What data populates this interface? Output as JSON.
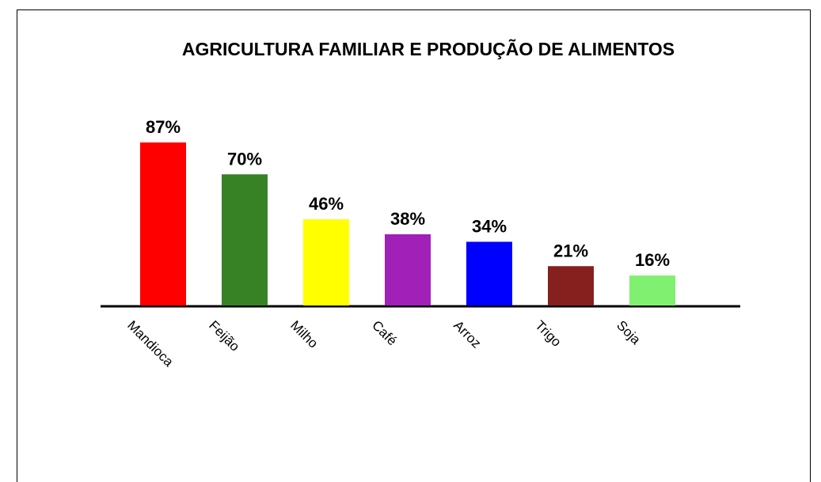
{
  "chart_data": {
    "type": "bar",
    "title": "AGRICULTURA FAMILIAR E PRODUÇÃO DE ALIMENTOS",
    "categories": [
      "Mandioca",
      "Feijão",
      "Milho",
      "Café",
      "Arroz",
      "Trigo",
      "Soja"
    ],
    "values": [
      87,
      70,
      46,
      38,
      34,
      21,
      16
    ],
    "value_labels": [
      "87%",
      "70%",
      "46%",
      "38%",
      "34%",
      "21%",
      "16%"
    ],
    "colors": [
      "#ff0000",
      "#368225",
      "#ffff00",
      "#a020b8",
      "#0000ff",
      "#86201e",
      "#80f070"
    ]
  }
}
